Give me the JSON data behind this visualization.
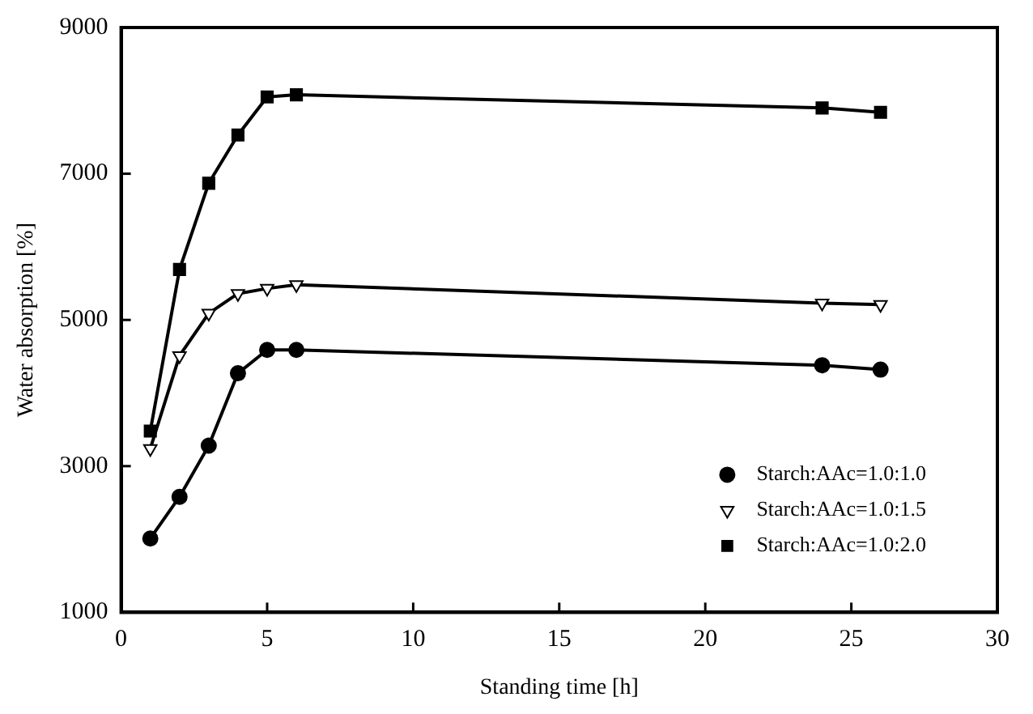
{
  "chart_data": {
    "type": "line",
    "xlabel": "Standing time [h]",
    "ylabel": "Water absorption [%]",
    "x": [
      1,
      2,
      3,
      4,
      5,
      6,
      24,
      26
    ],
    "series": [
      {
        "name": "Starch:AAc=1.0:1.0",
        "color": "#000000",
        "marker": "circle",
        "values": [
          2010,
          2580,
          3280,
          4270,
          4590,
          4590,
          4380,
          4320
        ]
      },
      {
        "name": "Starch:AAc=1.0:1.5",
        "color": "#000000",
        "marker": "triangle",
        "values": [
          3240,
          4510,
          5090,
          5360,
          5430,
          5480,
          5230,
          5210
        ]
      },
      {
        "name": "Starch:AAc=1.0:2.0",
        "color": "#000000",
        "marker": "square",
        "values": [
          3480,
          5690,
          6870,
          7530,
          8050,
          8080,
          7900,
          7840
        ]
      }
    ],
    "xlim": [
      0,
      30
    ],
    "xticks": [
      0,
      5,
      10,
      15,
      20,
      25,
      30
    ],
    "ylim": [
      1000,
      9000
    ],
    "yticks": [
      1000,
      3000,
      5000,
      7000,
      9000
    ],
    "grid": false,
    "legend": "bottom right",
    "line_style": "solid"
  }
}
